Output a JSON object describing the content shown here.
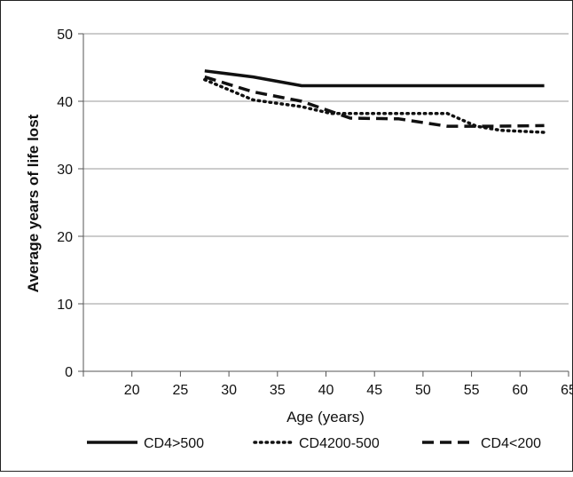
{
  "chart_data": {
    "type": "line",
    "xlabel": "Age (years)",
    "ylabel": "Average years of life lost",
    "xlim": [
      15,
      65
    ],
    "ylim": [
      0,
      50
    ],
    "x_ticks": [
      20,
      25,
      30,
      35,
      40,
      45,
      50,
      55,
      60,
      65
    ],
    "y_ticks": [
      0,
      10,
      20,
      30,
      40,
      50
    ],
    "grid": "horizontal",
    "legend_position": "bottom",
    "series": [
      {
        "name": "CD4>500",
        "style": "solid",
        "points": [
          [
            27.5,
            44.5
          ],
          [
            32.5,
            43.6
          ],
          [
            37.5,
            42.3
          ],
          [
            42.5,
            42.3
          ],
          [
            47.5,
            42.3
          ],
          [
            52.5,
            42.3
          ],
          [
            57.5,
            42.3
          ],
          [
            62.5,
            42.3
          ]
        ]
      },
      {
        "name": "CD4200-500",
        "style": "dotted",
        "points": [
          [
            27.5,
            43.2
          ],
          [
            32.5,
            40.2
          ],
          [
            37.5,
            39.2
          ],
          [
            40.5,
            38.2
          ],
          [
            45.0,
            38.2
          ],
          [
            50.0,
            38.2
          ],
          [
            52.5,
            38.2
          ],
          [
            55.5,
            36.3
          ],
          [
            58.0,
            35.7
          ],
          [
            62.5,
            35.4
          ]
        ]
      },
      {
        "name": "CD4<200",
        "style": "dashed",
        "points": [
          [
            27.5,
            43.6
          ],
          [
            32.5,
            41.4
          ],
          [
            37.5,
            40.0
          ],
          [
            42.5,
            37.5
          ],
          [
            47.5,
            37.4
          ],
          [
            52.5,
            36.3
          ],
          [
            57.5,
            36.3
          ],
          [
            62.5,
            36.4
          ]
        ]
      }
    ]
  }
}
